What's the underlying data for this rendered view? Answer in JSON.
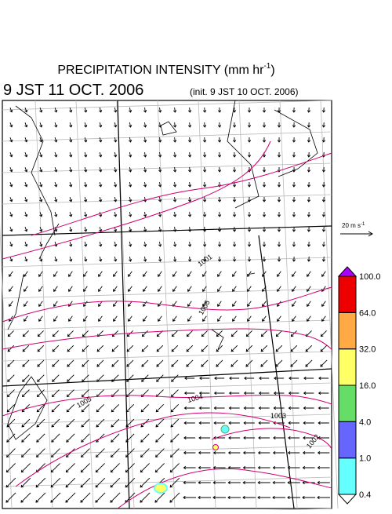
{
  "header": {
    "title": "PRECIPITATION INTENSITY (mm hr",
    "title_exponent": "-1",
    "title_close": ")",
    "valid_time": "9 JST 11 OCT. 2006",
    "init_time": "(init. 9 JST 10 OCT. 2006)"
  },
  "wind_scale": {
    "label": "20 m s",
    "exponent": "-1"
  },
  "contour_labels": [
    "1001",
    "1005",
    "1005",
    "1004",
    "1003",
    "1002"
  ],
  "colorbar": {
    "colors": [
      "#ffffff",
      "#66ffff",
      "#6666ff",
      "#66dd66",
      "#ffff66",
      "#ffaa44",
      "#ee0000",
      "#aa00ff"
    ],
    "ticks": [
      {
        "value": 0.4,
        "label": "0.4"
      },
      {
        "value": 1,
        "label": "1.0"
      },
      {
        "value": 4,
        "label": "4.0"
      },
      {
        "value": 16,
        "label": "16.0"
      },
      {
        "value": 32,
        "label": "32.0"
      },
      {
        "value": 64,
        "label": "64.0"
      },
      {
        "value": 100,
        "label": "100.0"
      }
    ]
  }
}
